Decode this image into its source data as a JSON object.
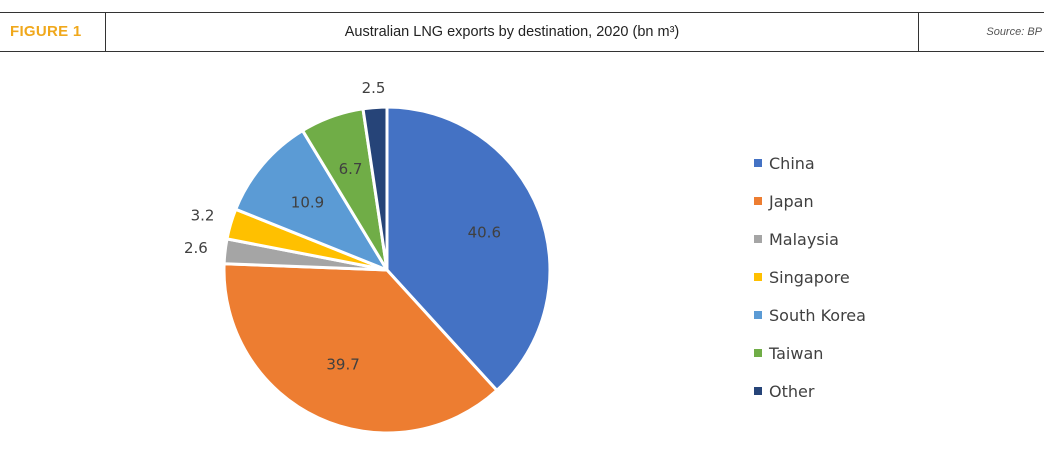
{
  "figure": {
    "label": "FIGURE 1",
    "title": "Australian LNG exports by destination, 2020 (bn m³)",
    "source": "Source: BP"
  },
  "colors": {
    "label": "#f0a81c",
    "China": "#4472c4",
    "Japan": "#ed7d31",
    "Malaysia": "#a5a5a5",
    "Singapore": "#ffc000",
    "South Korea": "#5b9bd5",
    "Taiwan": "#70ad47",
    "Other": "#264478"
  },
  "chart_data": {
    "type": "pie",
    "title": "Australian LNG exports by destination, 2020 (bn m³)",
    "categories": [
      "China",
      "Japan",
      "Malaysia",
      "Singapore",
      "South Korea",
      "Taiwan",
      "Other"
    ],
    "values": [
      40.6,
      39.7,
      2.6,
      3.2,
      10.9,
      6.7,
      2.5
    ],
    "data_labels": [
      "40.6",
      "39.7",
      "2.6",
      "3.2",
      "10.9",
      "6.7",
      "2.5"
    ],
    "start_angle": "12 o'clock",
    "direction": "clockwise",
    "legend_position": "right",
    "legend": [
      "China",
      "Japan",
      "Malaysia",
      "Singapore",
      "South Korea",
      "Taiwan",
      "Other"
    ]
  }
}
